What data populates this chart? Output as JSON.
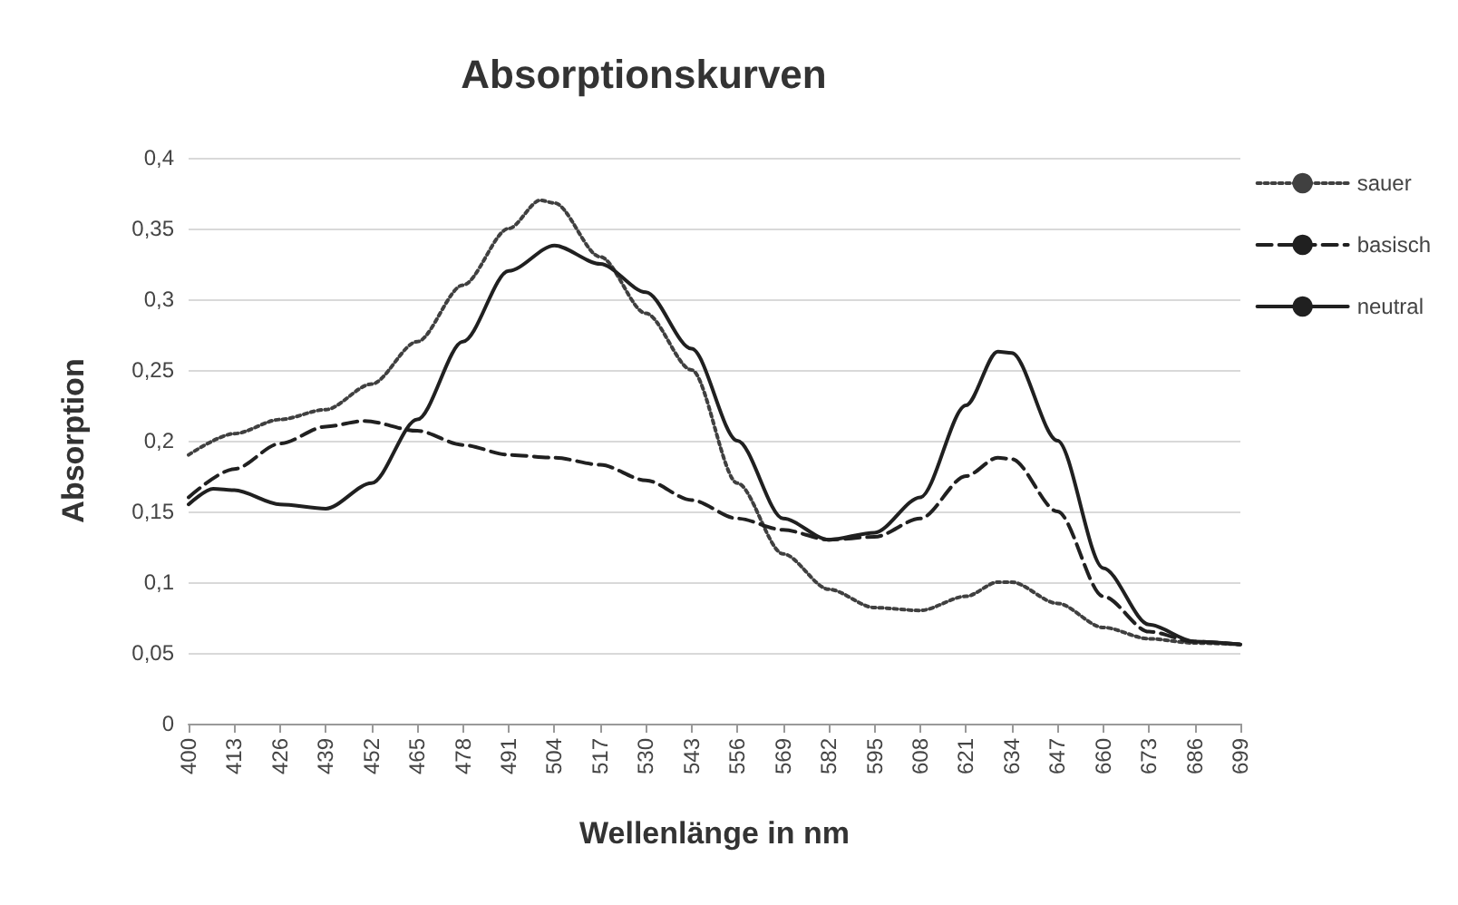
{
  "chart_data": {
    "type": "line",
    "title": "Absorptionskurven",
    "xlabel": "Wellenlänge in nm",
    "ylabel": "Absorption",
    "xlim": [
      400,
      699
    ],
    "xticks": [
      400,
      413,
      426,
      439,
      452,
      465,
      478,
      491,
      504,
      517,
      530,
      543,
      556,
      569,
      582,
      595,
      608,
      621,
      634,
      647,
      660,
      673,
      686,
      699
    ],
    "ylim": [
      0,
      0.4
    ],
    "yticks": [
      0,
      {
        "value": 0.05,
        "label": "0,05"
      },
      {
        "value": 0.1,
        "label": "0,1"
      },
      {
        "value": 0.15,
        "label": "0,15"
      },
      {
        "value": 0.2,
        "label": "0,2"
      },
      {
        "value": 0.25,
        "label": "0,25"
      },
      {
        "value": 0.3,
        "label": "0,3"
      },
      {
        "value": 0.35,
        "label": "0,35"
      },
      {
        "value": 0.4,
        "label": "0,4"
      }
    ],
    "grid": "y",
    "legend": "right",
    "marker": "none",
    "series": [
      {
        "name": "sauer",
        "color": "#404040",
        "line_style": "dotted",
        "x": [
          400,
          413,
          426,
          439,
          452,
          465,
          478,
          491,
          500,
          504,
          517,
          530,
          543,
          556,
          569,
          582,
          595,
          608,
          621,
          630,
          634,
          647,
          660,
          673,
          686,
          699
        ],
        "values": [
          0.19,
          0.205,
          0.215,
          0.222,
          0.24,
          0.27,
          0.31,
          0.35,
          0.37,
          0.368,
          0.33,
          0.29,
          0.25,
          0.17,
          0.12,
          0.095,
          0.082,
          0.08,
          0.09,
          0.1,
          0.1,
          0.085,
          0.068,
          0.06,
          0.057,
          0.056
        ]
      },
      {
        "name": "basisch",
        "color": "#202020",
        "line_style": "dashed",
        "x": [
          400,
          413,
          426,
          439,
          450,
          465,
          478,
          491,
          504,
          517,
          530,
          543,
          556,
          569,
          582,
          595,
          608,
          621,
          630,
          634,
          647,
          660,
          673,
          686,
          699
        ],
        "values": [
          0.16,
          0.18,
          0.198,
          0.21,
          0.214,
          0.207,
          0.197,
          0.19,
          0.188,
          0.183,
          0.172,
          0.158,
          0.145,
          0.137,
          0.13,
          0.132,
          0.145,
          0.175,
          0.188,
          0.187,
          0.15,
          0.09,
          0.065,
          0.058,
          0.056
        ]
      },
      {
        "name": "neutral",
        "color": "#202020",
        "line_style": "solid",
        "x": [
          400,
          407,
          413,
          426,
          439,
          452,
          465,
          478,
          491,
          504,
          517,
          530,
          543,
          556,
          569,
          582,
          595,
          608,
          621,
          630,
          634,
          647,
          660,
          673,
          686,
          699
        ],
        "values": [
          0.155,
          0.166,
          0.165,
          0.155,
          0.152,
          0.17,
          0.215,
          0.27,
          0.32,
          0.338,
          0.325,
          0.305,
          0.265,
          0.2,
          0.145,
          0.13,
          0.135,
          0.16,
          0.225,
          0.263,
          0.262,
          0.2,
          0.11,
          0.07,
          0.058,
          0.056
        ]
      }
    ]
  }
}
